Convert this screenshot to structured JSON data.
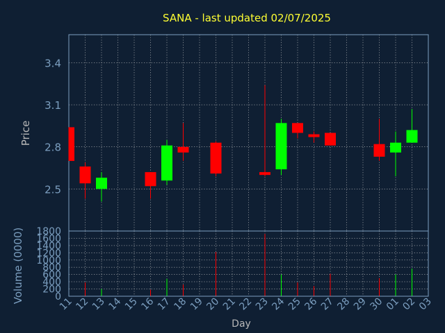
{
  "chart_data": {
    "type": "candlestick",
    "title": "SANA - last updated 02/07/2025",
    "xlabel": "Day",
    "price_ylabel": "Price",
    "volume_ylabel": "Volume (0000)",
    "price_ylim": [
      2.2,
      3.6
    ],
    "price_ticks": [
      "2.5",
      "2.8",
      "3.1",
      "3.4"
    ],
    "volume_ylim": [
      0,
      1800
    ],
    "volume_ticks": [
      "0",
      "200",
      "400",
      "600",
      "800",
      "1000",
      "1200",
      "1400",
      "1600",
      "1800"
    ],
    "grid": true,
    "days": [
      "11",
      "12",
      "13",
      "14",
      "15",
      "16",
      "17",
      "18",
      "19",
      "20",
      "21",
      "22",
      "23",
      "24",
      "25",
      "26",
      "27",
      "28",
      "29",
      "30",
      "01",
      "02",
      "03"
    ],
    "candles": [
      {
        "day": "11",
        "open": 2.94,
        "high": 2.94,
        "low": 2.7,
        "close": 2.7,
        "volume": 0
      },
      {
        "day": "12",
        "open": 2.66,
        "high": 2.69,
        "low": 2.43,
        "close": 2.54,
        "volume": 380
      },
      {
        "day": "13",
        "open": 2.5,
        "high": 2.62,
        "low": 2.41,
        "close": 2.58,
        "volume": 200
      },
      {
        "day": "16",
        "open": 2.62,
        "high": 2.62,
        "low": 2.43,
        "close": 2.52,
        "volume": 180
      },
      {
        "day": "17",
        "open": 2.56,
        "high": 2.85,
        "low": 2.53,
        "close": 2.81,
        "volume": 480
      },
      {
        "day": "18",
        "open": 2.8,
        "high": 2.97,
        "low": 2.7,
        "close": 2.76,
        "volume": 320
      },
      {
        "day": "20",
        "open": 2.83,
        "high": 2.84,
        "low": 2.59,
        "close": 2.61,
        "volume": 1220
      },
      {
        "day": "23",
        "open": 2.62,
        "high": 3.24,
        "low": 2.59,
        "close": 2.6,
        "volume": 1720
      },
      {
        "day": "24",
        "open": 2.64,
        "high": 3.0,
        "low": 2.6,
        "close": 2.97,
        "volume": 600
      },
      {
        "day": "25",
        "open": 2.97,
        "high": 2.97,
        "low": 2.86,
        "close": 2.9,
        "volume": 380
      },
      {
        "day": "26",
        "open": 2.89,
        "high": 2.91,
        "low": 2.83,
        "close": 2.87,
        "volume": 280
      },
      {
        "day": "27",
        "open": 2.9,
        "high": 2.9,
        "low": 2.81,
        "close": 2.81,
        "volume": 620
      },
      {
        "day": "30",
        "open": 2.82,
        "high": 3.0,
        "low": 2.7,
        "close": 2.73,
        "volume": 500
      },
      {
        "day": "01",
        "open": 2.76,
        "high": 2.91,
        "low": 2.59,
        "close": 2.83,
        "volume": 600
      },
      {
        "day": "02",
        "open": 2.83,
        "high": 3.07,
        "low": 2.83,
        "close": 2.92,
        "volume": 760
      }
    ]
  },
  "colors": {
    "background": "#0f1f33",
    "up": "#00ff00",
    "down": "#ff0000",
    "title": "#ffff33",
    "axis_text": "#b8b8b8",
    "tick_text": "#7c9fc0",
    "grid": "#c8c8c8"
  }
}
